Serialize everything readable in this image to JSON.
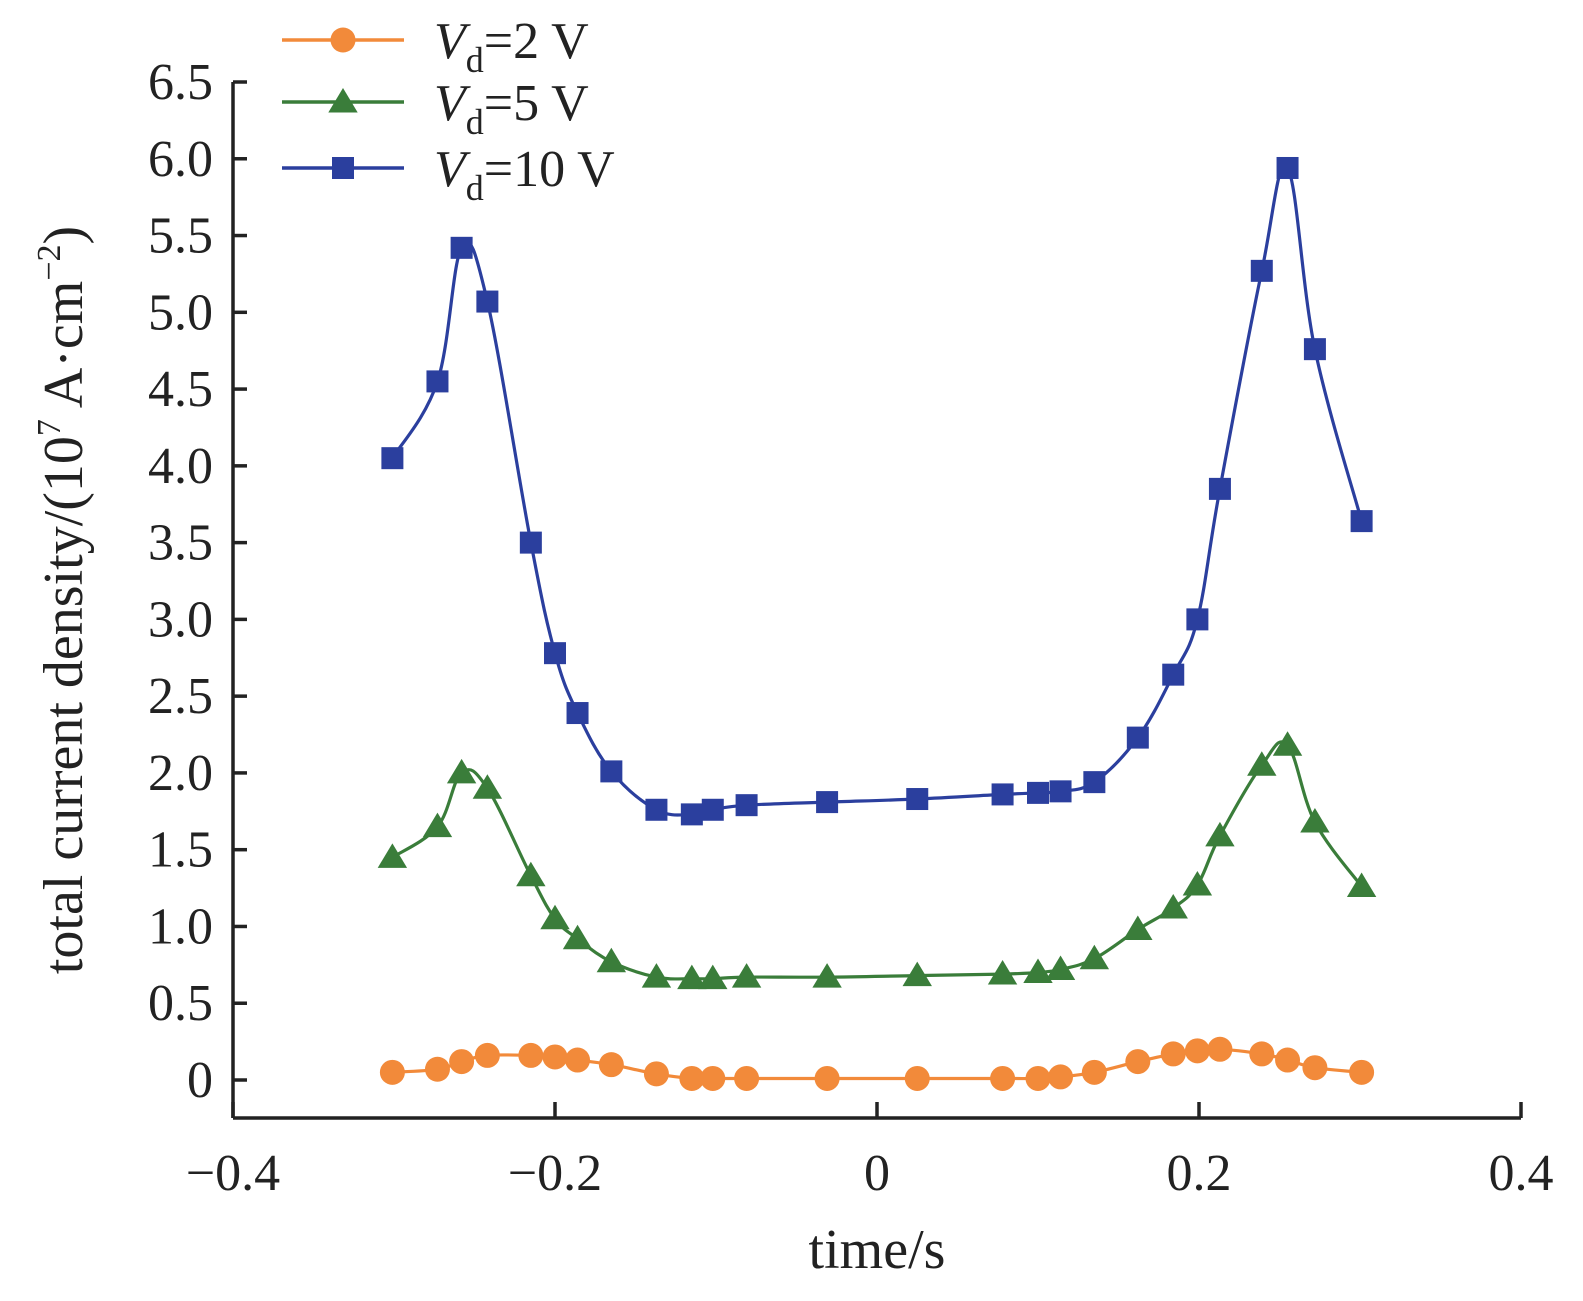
{
  "chart_data": {
    "type": "line",
    "xlabel": "time/s",
    "ylabel": "total current density/(10",
    "ylabel_exp": "7",
    "ylabel_unit": " A·cm",
    "ylabel_unit_exp": "−2",
    "ylabel_close": ")",
    "xlim": [
      -0.4,
      0.4
    ],
    "ylim": [
      -0.25,
      6.5
    ],
    "xticks": [
      -0.4,
      -0.2,
      0,
      0.2,
      0.4
    ],
    "xtick_labels": [
      "−0.4",
      "−0.2",
      "0",
      "0.2",
      "0.4"
    ],
    "yticks": [
      0,
      0.5,
      1.0,
      1.5,
      2.0,
      2.5,
      3.0,
      3.5,
      4.0,
      4.5,
      5.0,
      5.5,
      6.0,
      6.5
    ],
    "ytick_labels": [
      "0",
      "0.5",
      "1.0",
      "1.5",
      "2.0",
      "2.5",
      "3.0",
      "3.5",
      "4.0",
      "4.5",
      "5.0",
      "5.5",
      "6.0",
      "6.5"
    ],
    "grid": false,
    "legend_position": "top-left",
    "series": [
      {
        "name": "Vd=2 V",
        "legend_main": "V",
        "legend_sub": "d",
        "legend_rest": "=2 V",
        "color": "#F28A3A",
        "marker": "circle",
        "x": [
          -0.301,
          -0.273,
          -0.258,
          -0.242,
          -0.215,
          -0.2,
          -0.186,
          -0.165,
          -0.137,
          -0.115,
          -0.102,
          -0.081,
          -0.031,
          0.025,
          0.078,
          0.1,
          0.114,
          0.135,
          0.162,
          0.184,
          0.199,
          0.213,
          0.239,
          0.255,
          0.272,
          0.301
        ],
        "y": [
          0.05,
          0.07,
          0.12,
          0.16,
          0.16,
          0.15,
          0.13,
          0.1,
          0.04,
          0.01,
          0.01,
          0.01,
          0.01,
          0.01,
          0.01,
          0.01,
          0.02,
          0.05,
          0.12,
          0.17,
          0.19,
          0.2,
          0.17,
          0.13,
          0.08,
          0.05
        ]
      },
      {
        "name": "Vd=5 V",
        "legend_main": "V",
        "legend_sub": "d",
        "legend_rest": "=5 V",
        "color": "#3A7D3A",
        "marker": "triangle",
        "x": [
          -0.301,
          -0.273,
          -0.258,
          -0.242,
          -0.215,
          -0.2,
          -0.186,
          -0.165,
          -0.137,
          -0.115,
          -0.102,
          -0.081,
          -0.031,
          0.025,
          0.078,
          0.1,
          0.114,
          0.135,
          0.162,
          0.184,
          0.199,
          0.213,
          0.239,
          0.255,
          0.272,
          0.301
        ],
        "y": [
          1.45,
          1.65,
          2.0,
          1.9,
          1.33,
          1.05,
          0.92,
          0.77,
          0.67,
          0.66,
          0.66,
          0.67,
          0.67,
          0.68,
          0.69,
          0.7,
          0.72,
          0.79,
          0.98,
          1.12,
          1.27,
          1.59,
          2.05,
          2.18,
          1.68,
          1.26
        ]
      },
      {
        "name": "Vd=10 V",
        "legend_main": "V",
        "legend_sub": "d",
        "legend_rest": "=10 V",
        "color": "#2B3F9E",
        "marker": "square",
        "x": [
          -0.301,
          -0.273,
          -0.258,
          -0.242,
          -0.215,
          -0.2,
          -0.186,
          -0.165,
          -0.137,
          -0.115,
          -0.102,
          -0.081,
          -0.031,
          0.025,
          0.078,
          0.1,
          0.114,
          0.135,
          0.162,
          0.184,
          0.199,
          0.213,
          0.239,
          0.255,
          0.272,
          0.301
        ],
        "y": [
          4.05,
          4.55,
          5.42,
          5.07,
          3.5,
          2.78,
          2.39,
          2.01,
          1.76,
          1.73,
          1.76,
          1.79,
          1.81,
          1.83,
          1.86,
          1.87,
          1.88,
          1.94,
          2.23,
          2.64,
          3.0,
          3.85,
          5.27,
          5.94,
          4.76,
          3.64
        ]
      }
    ]
  }
}
